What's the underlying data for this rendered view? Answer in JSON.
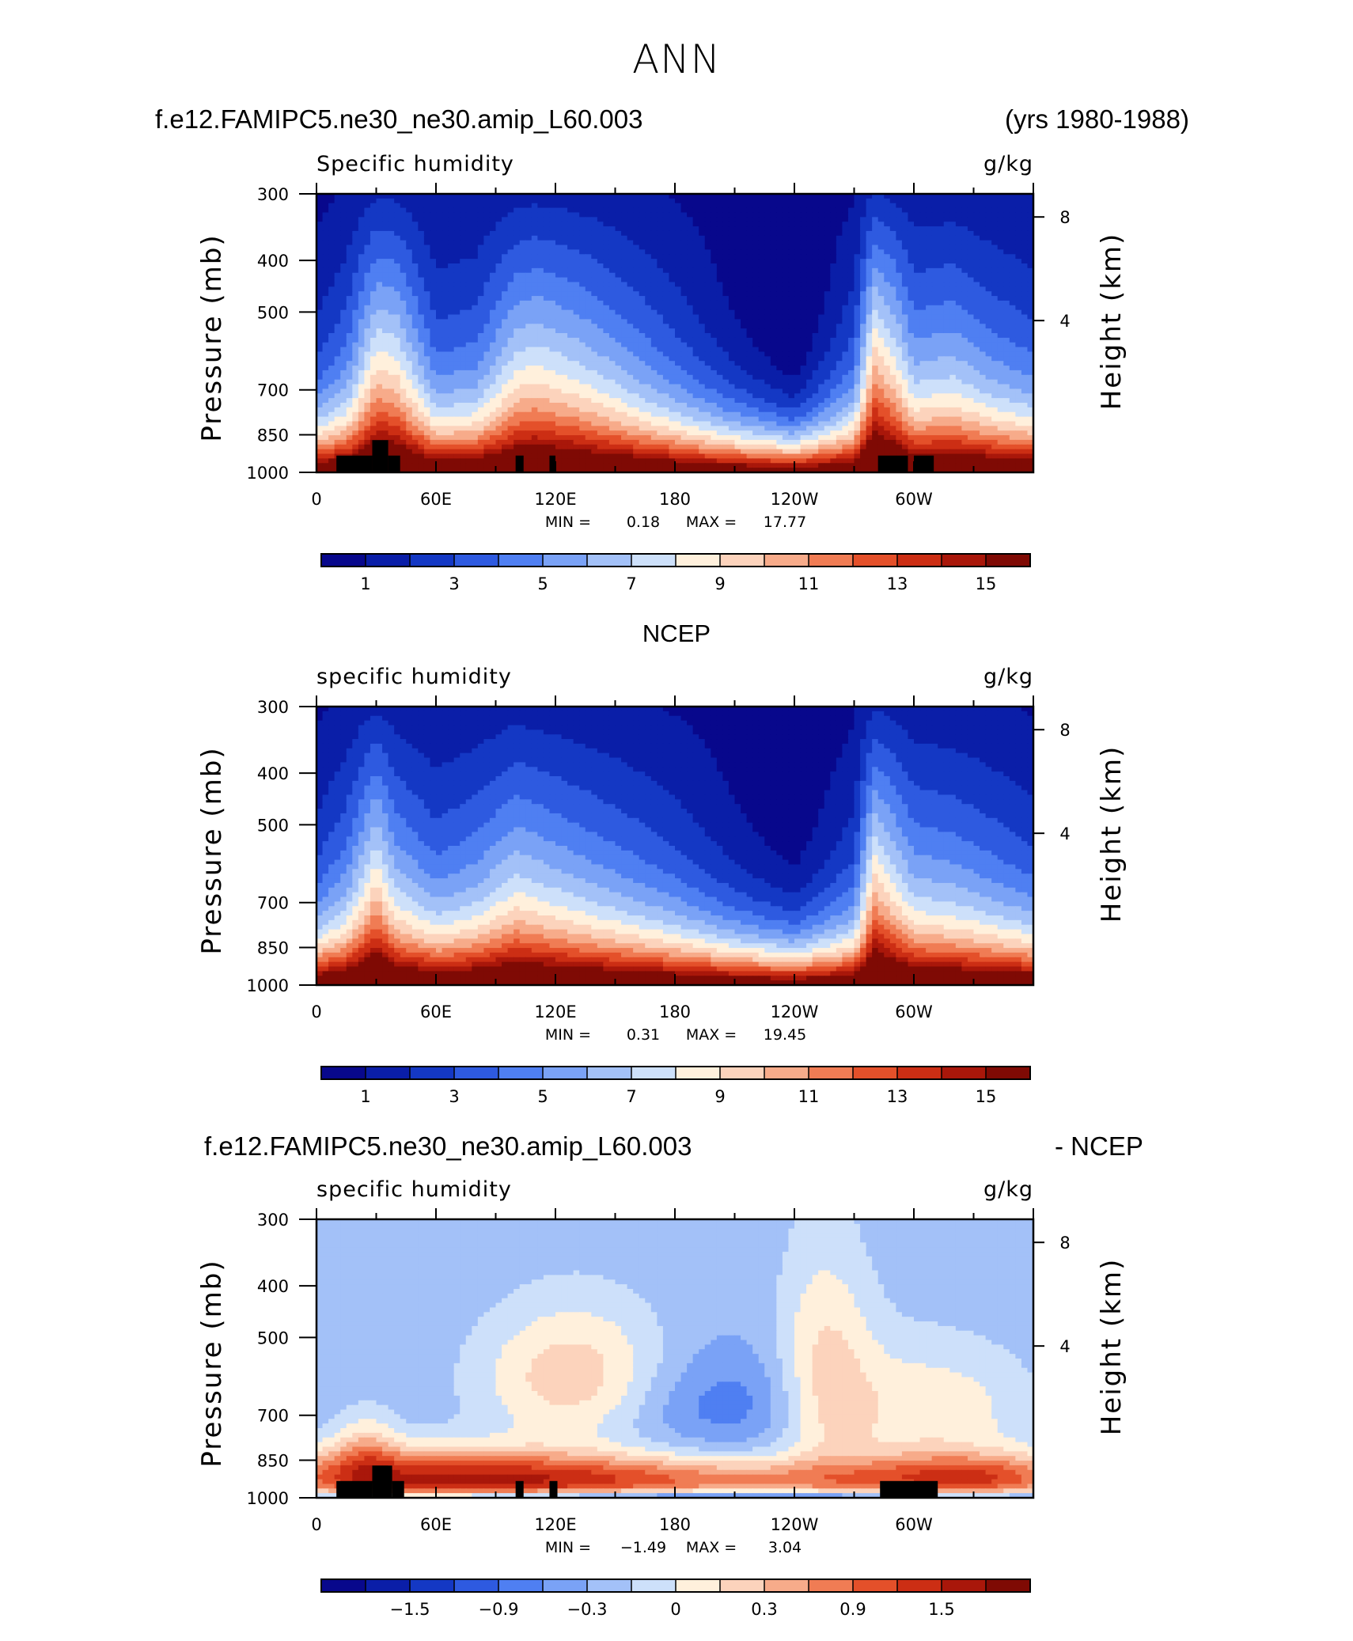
{
  "figure": {
    "title": "ANN",
    "case_name": "f.e12.FAMIPC5.ne30_ne30.amip_L60.003",
    "years": "(yrs 1980-1988)",
    "obs_title": "NCEP",
    "diff_case_name": "f.e12.FAMIPC5.ne30_ne30.amip_L60.003",
    "diff_obs": "- NCEP"
  },
  "colors": {
    "shading": [
      "#08088c",
      "#0a1ea8",
      "#1438c4",
      "#2e5ae0",
      "#4f7ff2",
      "#7aa2f6",
      "#a3c1f8",
      "#cde0fa",
      "#fff0dc",
      "#fcd3bc",
      "#f7ab8a",
      "#f07c54",
      "#e4502a",
      "#cc2e14",
      "#a9170a",
      "#7f0a04"
    ]
  },
  "chart_data": [
    {
      "type": "heatmap",
      "name": "model",
      "title": "Specific humidity",
      "units": "g/kg",
      "ylabel": "Pressure (mb)",
      "ylabel_right": "Height (km)",
      "x_ticks": [
        "0",
        "60E",
        "120E",
        "180",
        "120W",
        "60W"
      ],
      "y_ticks": [
        "300",
        "400",
        "500",
        "700",
        "850",
        "1000"
      ],
      "height_ticks": [
        "8",
        "4"
      ],
      "stats": {
        "min_label": "MIN =",
        "min": "0.18",
        "max_label": "MAX =",
        "max": "17.77"
      },
      "levels": [
        0,
        1,
        2,
        3,
        4,
        5,
        6,
        7,
        8,
        9,
        10,
        11,
        12,
        13,
        14,
        15
      ],
      "colorbar_labels": [
        "1",
        "3",
        "5",
        "7",
        "9",
        "11",
        "13",
        "15"
      ],
      "grid": false,
      "profile_lon_deg": [
        0,
        15,
        30,
        40,
        60,
        80,
        100,
        110,
        120,
        130,
        150,
        180,
        210,
        240,
        270,
        280,
        290,
        300,
        320,
        340,
        360
      ],
      "profile_offset": [
        0.1,
        0.5,
        1.5,
        1.4,
        0.4,
        0.5,
        1.2,
        1.3,
        1.2,
        1.1,
        0.8,
        0.3,
        -0.2,
        -0.6,
        0.3,
        1.8,
        1.4,
        0.8,
        0.9,
        0.6,
        0.4
      ],
      "terrain": [
        [
          10,
          28,
          930
        ],
        [
          28,
          36,
          870
        ],
        [
          36,
          42,
          930
        ],
        [
          100,
          104,
          930
        ],
        [
          117,
          120,
          930
        ],
        [
          282,
          297,
          930
        ],
        [
          300,
          310,
          930
        ]
      ]
    },
    {
      "type": "heatmap",
      "name": "obs",
      "title": "specific humidity",
      "units": "g/kg",
      "ylabel": "Pressure (mb)",
      "ylabel_right": "Height (km)",
      "x_ticks": [
        "0",
        "60E",
        "120E",
        "180",
        "120W",
        "60W"
      ],
      "y_ticks": [
        "300",
        "400",
        "500",
        "700",
        "850",
        "1000"
      ],
      "height_ticks": [
        "8",
        "4"
      ],
      "stats": {
        "min_label": "MIN =",
        "min": "0.31",
        "max_label": "MAX =",
        "max": "19.45"
      },
      "levels": [
        0,
        1,
        2,
        3,
        4,
        5,
        6,
        7,
        8,
        9,
        10,
        11,
        12,
        13,
        14,
        15
      ],
      "colorbar_labels": [
        "1",
        "3",
        "5",
        "7",
        "9",
        "11",
        "13",
        "15"
      ],
      "grid": false,
      "profile_lon_deg": [
        0,
        15,
        30,
        40,
        60,
        80,
        100,
        110,
        120,
        130,
        150,
        180,
        210,
        240,
        270,
        280,
        290,
        300,
        320,
        340,
        360
      ],
      "profile_offset": [
        0.2,
        0.6,
        1.5,
        0.9,
        0.5,
        0.7,
        1.1,
        1.0,
        0.9,
        0.8,
        0.6,
        0.3,
        -0.1,
        -0.4,
        0.2,
        1.6,
        1.2,
        0.8,
        0.7,
        0.5,
        0.3
      ],
      "terrain": []
    },
    {
      "type": "heatmap",
      "name": "difference",
      "title": "specific humidity",
      "units": "g/kg",
      "ylabel": "Pressure (mb)",
      "ylabel_right": "Height (km)",
      "x_ticks": [
        "0",
        "60E",
        "120E",
        "180",
        "120W",
        "60W"
      ],
      "y_ticks": [
        "300",
        "400",
        "500",
        "700",
        "850",
        "1000"
      ],
      "height_ticks": [
        "8",
        "4"
      ],
      "stats": {
        "min_label": "MIN =",
        "min": "−1.49",
        "max_label": "MAX =",
        "max": "3.04"
      },
      "levels": [
        -2.1,
        -1.8,
        -1.5,
        -1.2,
        -0.9,
        -0.6,
        -0.3,
        0,
        0.3,
        0.6,
        0.9,
        1.2,
        1.5,
        1.8,
        2.1
      ],
      "colorbar_labels": [
        "−1.5",
        "−0.9",
        "−0.3",
        "0",
        "0.3",
        "0.9",
        "1.5"
      ],
      "grid": false,
      "terrain": [
        [
          10,
          28,
          930
        ],
        [
          28,
          38,
          870
        ],
        [
          38,
          44,
          930
        ],
        [
          100,
          104,
          930
        ],
        [
          117,
          121,
          930
        ],
        [
          283,
          312,
          930
        ]
      ]
    }
  ]
}
